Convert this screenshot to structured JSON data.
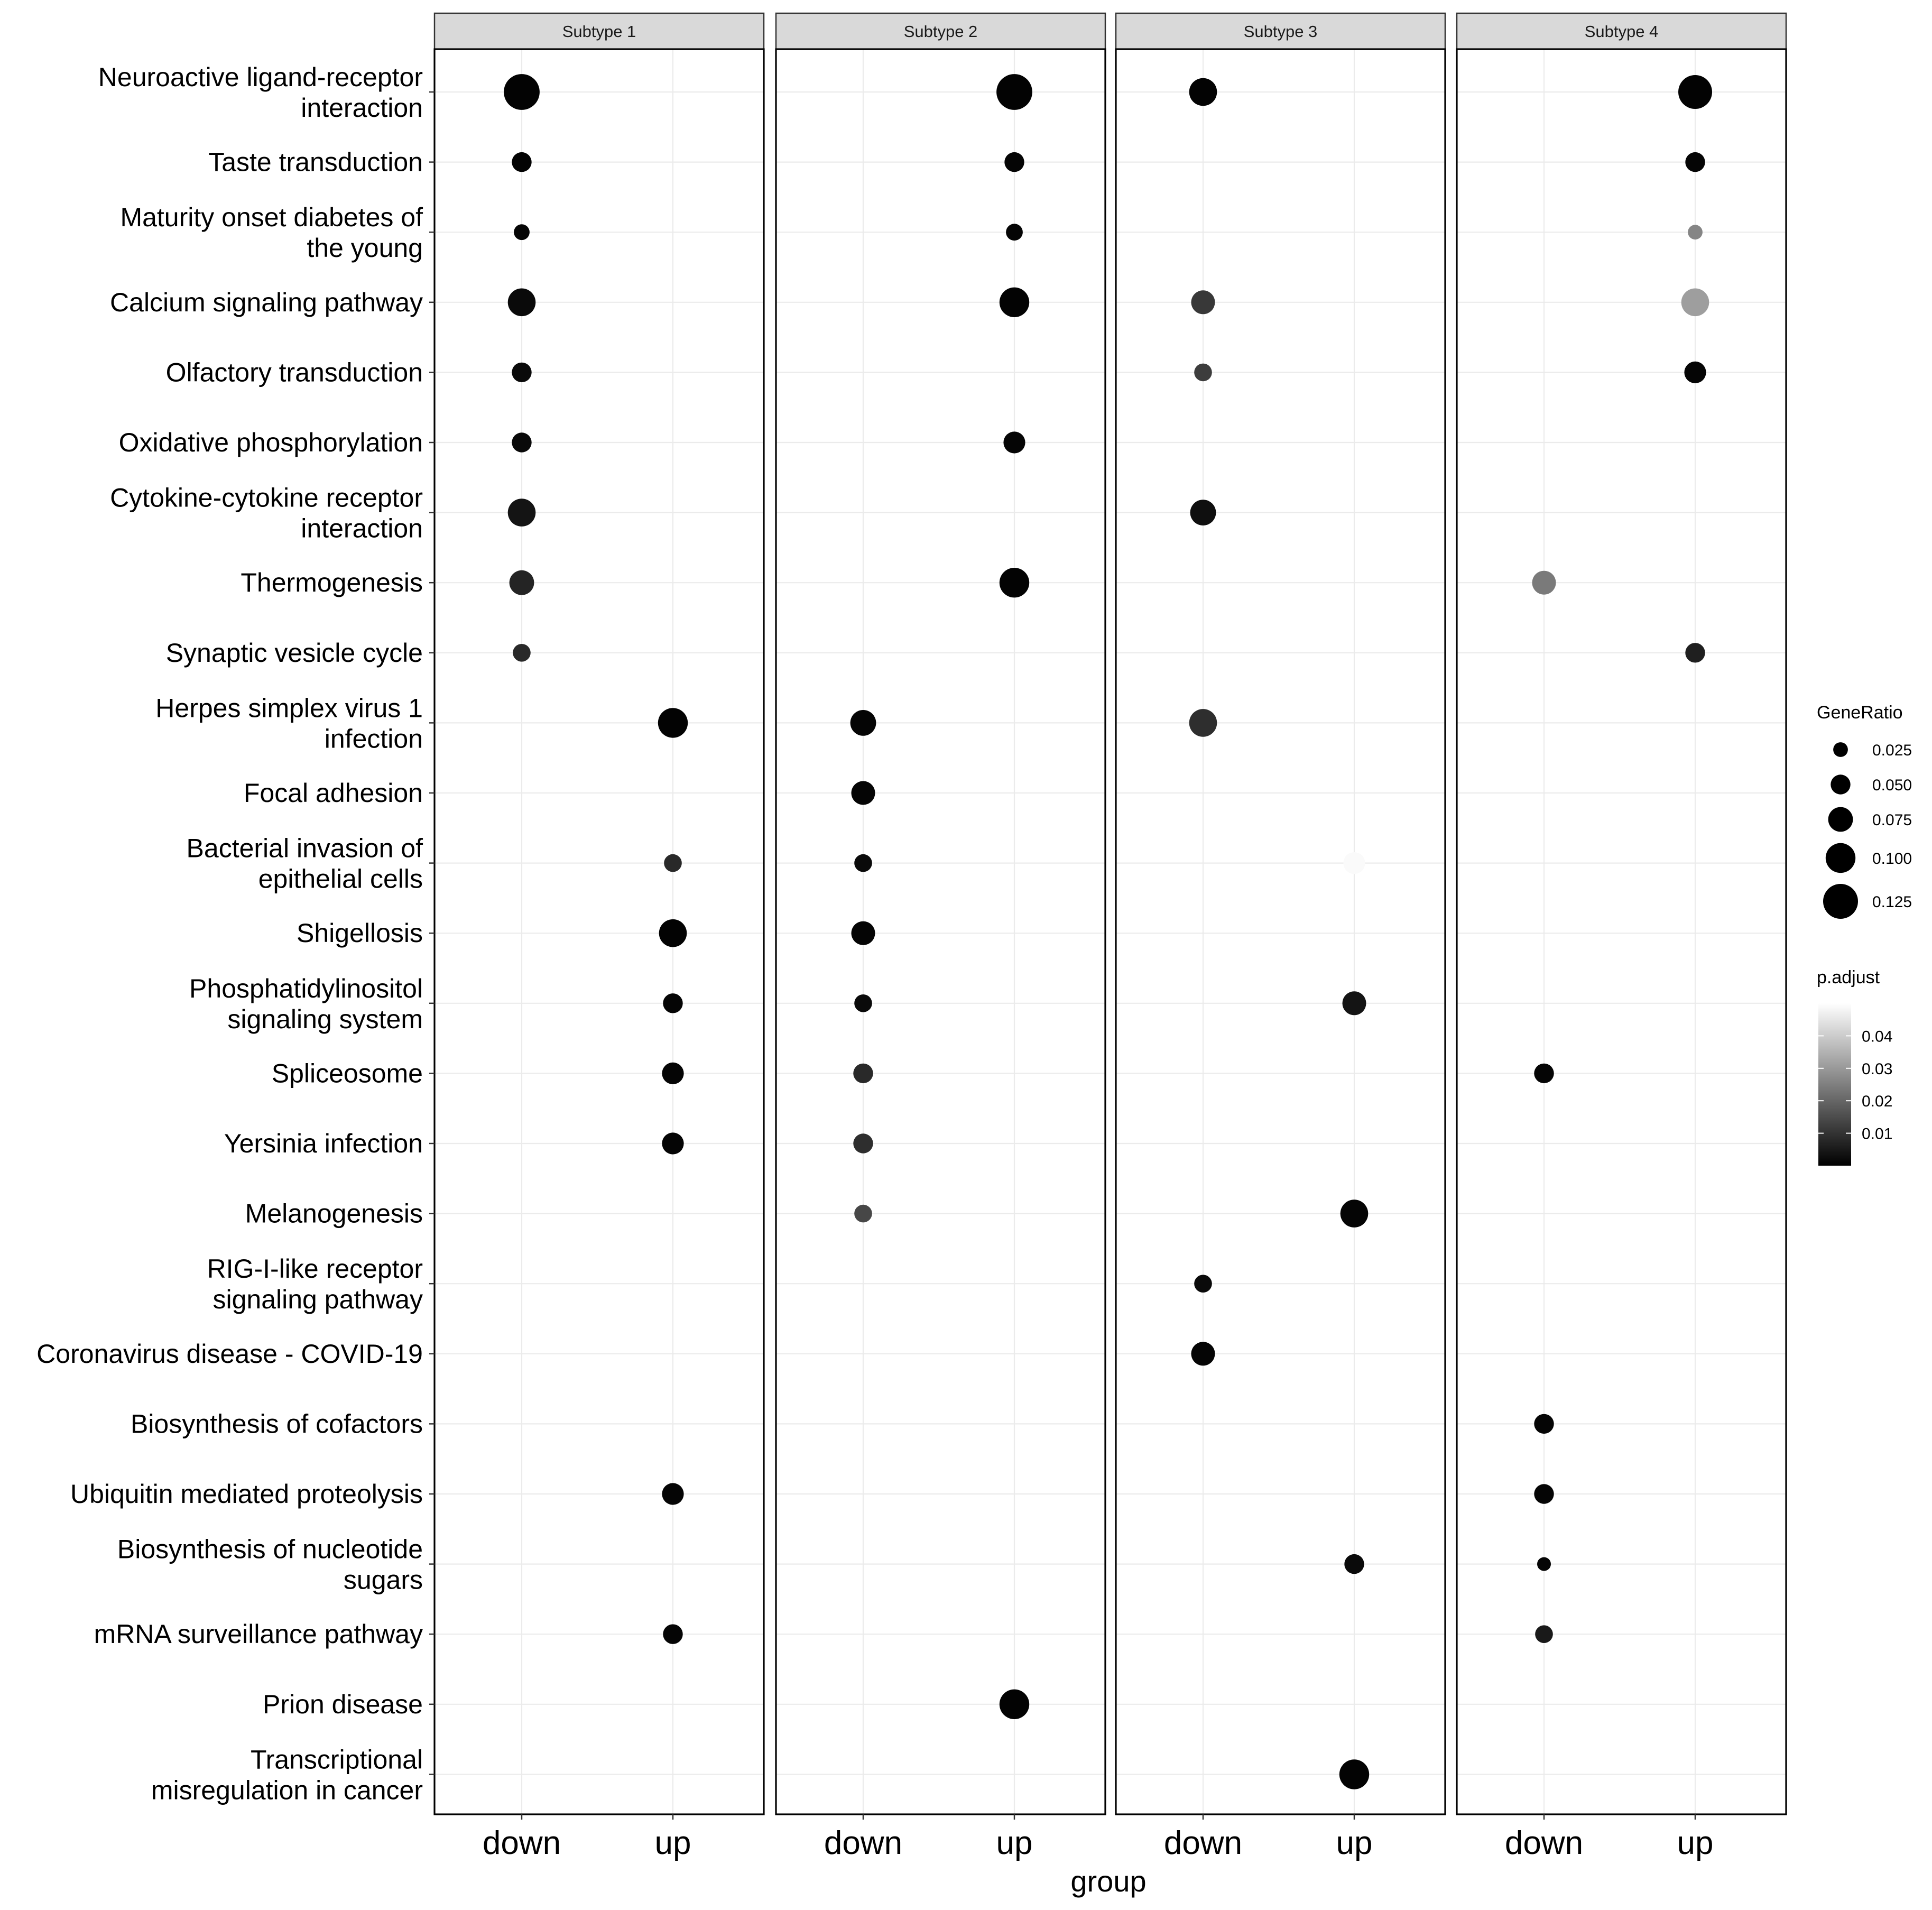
{
  "chart_data": {
    "type": "dot",
    "xlabel": "group",
    "facets": [
      "Subtype 1",
      "Subtype 2",
      "Subtype 3",
      "Subtype 4"
    ],
    "groups": [
      "down",
      "up"
    ],
    "pathways": [
      "Neuroactive ligand-receptor interaction",
      "Taste transduction",
      "Maturity onset diabetes of the young",
      "Calcium signaling pathway",
      "Olfactory transduction",
      "Oxidative phosphorylation",
      "Cytokine-cytokine receptor interaction",
      "Thermogenesis",
      "Synaptic vesicle cycle",
      "Herpes simplex virus 1 infection",
      "Focal adhesion",
      "Bacterial invasion of epithelial cells",
      "Shigellosis",
      "Phosphatidylinositol signaling system",
      "Spliceosome",
      "Yersinia infection",
      "Melanogenesis",
      "RIG-I-like receptor signaling pathway",
      "Coronavirus disease - COVID-19",
      "Biosynthesis of cofactors",
      "Ubiquitin mediated proteolysis",
      "Biosynthesis of nucleotide sugars",
      "mRNA surveillance pathway",
      "Prion disease",
      "Transcriptional misregulation in cancer"
    ],
    "pathway_label_lines": [
      [
        "Neuroactive ligand-receptor",
        "interaction"
      ],
      [
        "Taste transduction"
      ],
      [
        "Maturity onset diabetes of",
        "the young"
      ],
      [
        "Calcium signaling pathway"
      ],
      [
        "Olfactory transduction"
      ],
      [
        "Oxidative phosphorylation"
      ],
      [
        "Cytokine-cytokine receptor",
        "interaction"
      ],
      [
        "Thermogenesis"
      ],
      [
        "Synaptic vesicle cycle"
      ],
      [
        "Herpes simplex virus 1",
        "infection"
      ],
      [
        "Focal adhesion"
      ],
      [
        "Bacterial invasion of",
        "epithelial cells"
      ],
      [
        "Shigellosis"
      ],
      [
        "Phosphatidylinositol",
        "signaling system"
      ],
      [
        "Spliceosome"
      ],
      [
        "Yersinia infection"
      ],
      [
        "Melanogenesis"
      ],
      [
        "RIG-I-like receptor",
        "signaling pathway"
      ],
      [
        "Coronavirus disease - COVID-19"
      ],
      [
        "Biosynthesis of cofactors"
      ],
      [
        "Ubiquitin mediated proteolysis"
      ],
      [
        "Biosynthesis of nucleotide",
        "sugars"
      ],
      [
        "mRNA surveillance pathway"
      ],
      [
        "Prion disease"
      ],
      [
        "Transcriptional",
        "misregulation in cancer"
      ]
    ],
    "points": [
      {
        "facet": 0,
        "group": "down",
        "pathway": 0,
        "gene_ratio": 0.13,
        "p_adjust": 0.0005
      },
      {
        "facet": 0,
        "group": "down",
        "pathway": 1,
        "gene_ratio": 0.05,
        "p_adjust": 0.0005
      },
      {
        "facet": 0,
        "group": "down",
        "pathway": 2,
        "gene_ratio": 0.03,
        "p_adjust": 0.001
      },
      {
        "facet": 0,
        "group": "down",
        "pathway": 3,
        "gene_ratio": 0.09,
        "p_adjust": 0.002
      },
      {
        "facet": 0,
        "group": "down",
        "pathway": 4,
        "gene_ratio": 0.05,
        "p_adjust": 0.002
      },
      {
        "facet": 0,
        "group": "down",
        "pathway": 5,
        "gene_ratio": 0.05,
        "p_adjust": 0.002
      },
      {
        "facet": 0,
        "group": "down",
        "pathway": 6,
        "gene_ratio": 0.09,
        "p_adjust": 0.004
      },
      {
        "facet": 0,
        "group": "down",
        "pathway": 7,
        "gene_ratio": 0.075,
        "p_adjust": 0.007
      },
      {
        "facet": 0,
        "group": "down",
        "pathway": 8,
        "gene_ratio": 0.04,
        "p_adjust": 0.008
      },
      {
        "facet": 0,
        "group": "up",
        "pathway": 9,
        "gene_ratio": 0.1,
        "p_adjust": 0.0005
      },
      {
        "facet": 0,
        "group": "up",
        "pathway": 11,
        "gene_ratio": 0.04,
        "p_adjust": 0.008
      },
      {
        "facet": 0,
        "group": "up",
        "pathway": 12,
        "gene_ratio": 0.09,
        "p_adjust": 0.0005
      },
      {
        "facet": 0,
        "group": "up",
        "pathway": 13,
        "gene_ratio": 0.05,
        "p_adjust": 0.001
      },
      {
        "facet": 0,
        "group": "up",
        "pathway": 14,
        "gene_ratio": 0.06,
        "p_adjust": 0.001
      },
      {
        "facet": 0,
        "group": "up",
        "pathway": 15,
        "gene_ratio": 0.06,
        "p_adjust": 0.001
      },
      {
        "facet": 0,
        "group": "up",
        "pathway": 20,
        "gene_ratio": 0.06,
        "p_adjust": 0.001
      },
      {
        "facet": 0,
        "group": "up",
        "pathway": 22,
        "gene_ratio": 0.05,
        "p_adjust": 0.001
      },
      {
        "facet": 1,
        "group": "up",
        "pathway": 0,
        "gene_ratio": 0.13,
        "p_adjust": 0.0005
      },
      {
        "facet": 1,
        "group": "up",
        "pathway": 1,
        "gene_ratio": 0.05,
        "p_adjust": 0.001
      },
      {
        "facet": 1,
        "group": "up",
        "pathway": 2,
        "gene_ratio": 0.035,
        "p_adjust": 0.001
      },
      {
        "facet": 1,
        "group": "up",
        "pathway": 3,
        "gene_ratio": 0.1,
        "p_adjust": 0.0005
      },
      {
        "facet": 1,
        "group": "up",
        "pathway": 5,
        "gene_ratio": 0.06,
        "p_adjust": 0.001
      },
      {
        "facet": 1,
        "group": "up",
        "pathway": 7,
        "gene_ratio": 0.1,
        "p_adjust": 0.0005
      },
      {
        "facet": 1,
        "group": "down",
        "pathway": 9,
        "gene_ratio": 0.08,
        "p_adjust": 0.001
      },
      {
        "facet": 1,
        "group": "down",
        "pathway": 10,
        "gene_ratio": 0.07,
        "p_adjust": 0.001
      },
      {
        "facet": 1,
        "group": "down",
        "pathway": 11,
        "gene_ratio": 0.04,
        "p_adjust": 0.002
      },
      {
        "facet": 1,
        "group": "down",
        "pathway": 12,
        "gene_ratio": 0.07,
        "p_adjust": 0.001
      },
      {
        "facet": 1,
        "group": "down",
        "pathway": 13,
        "gene_ratio": 0.04,
        "p_adjust": 0.002
      },
      {
        "facet": 1,
        "group": "down",
        "pathway": 14,
        "gene_ratio": 0.05,
        "p_adjust": 0.008
      },
      {
        "facet": 1,
        "group": "down",
        "pathway": 15,
        "gene_ratio": 0.05,
        "p_adjust": 0.009
      },
      {
        "facet": 1,
        "group": "down",
        "pathway": 16,
        "gene_ratio": 0.04,
        "p_adjust": 0.014
      },
      {
        "facet": 1,
        "group": "up",
        "pathway": 23,
        "gene_ratio": 0.1,
        "p_adjust": 0.0005
      },
      {
        "facet": 2,
        "group": "down",
        "pathway": 0,
        "gene_ratio": 0.09,
        "p_adjust": 0.0005
      },
      {
        "facet": 2,
        "group": "down",
        "pathway": 3,
        "gene_ratio": 0.07,
        "p_adjust": 0.011
      },
      {
        "facet": 2,
        "group": "down",
        "pathway": 4,
        "gene_ratio": 0.04,
        "p_adjust": 0.012
      },
      {
        "facet": 2,
        "group": "down",
        "pathway": 6,
        "gene_ratio": 0.08,
        "p_adjust": 0.003
      },
      {
        "facet": 2,
        "group": "down",
        "pathway": 9,
        "gene_ratio": 0.09,
        "p_adjust": 0.009
      },
      {
        "facet": 2,
        "group": "up",
        "pathway": 11,
        "gene_ratio": 0.06,
        "p_adjust": 0.049
      },
      {
        "facet": 2,
        "group": "up",
        "pathway": 13,
        "gene_ratio": 0.07,
        "p_adjust": 0.004
      },
      {
        "facet": 2,
        "group": "up",
        "pathway": 16,
        "gene_ratio": 0.09,
        "p_adjust": 0.001
      },
      {
        "facet": 2,
        "group": "down",
        "pathway": 17,
        "gene_ratio": 0.04,
        "p_adjust": 0.002
      },
      {
        "facet": 2,
        "group": "down",
        "pathway": 18,
        "gene_ratio": 0.07,
        "p_adjust": 0.001
      },
      {
        "facet": 2,
        "group": "up",
        "pathway": 21,
        "gene_ratio": 0.05,
        "p_adjust": 0.002
      },
      {
        "facet": 2,
        "group": "up",
        "pathway": 24,
        "gene_ratio": 0.1,
        "p_adjust": 0.0005
      },
      {
        "facet": 3,
        "group": "up",
        "pathway": 0,
        "gene_ratio": 0.12,
        "p_adjust": 0.0005
      },
      {
        "facet": 3,
        "group": "up",
        "pathway": 1,
        "gene_ratio": 0.05,
        "p_adjust": 0.001
      },
      {
        "facet": 3,
        "group": "up",
        "pathway": 2,
        "gene_ratio": 0.025,
        "p_adjust": 0.026
      },
      {
        "facet": 3,
        "group": "up",
        "pathway": 3,
        "gene_ratio": 0.09,
        "p_adjust": 0.031
      },
      {
        "facet": 3,
        "group": "up",
        "pathway": 4,
        "gene_ratio": 0.06,
        "p_adjust": 0.001
      },
      {
        "facet": 3,
        "group": "down",
        "pathway": 7,
        "gene_ratio": 0.07,
        "p_adjust": 0.024
      },
      {
        "facet": 3,
        "group": "up",
        "pathway": 8,
        "gene_ratio": 0.05,
        "p_adjust": 0.006
      },
      {
        "facet": 3,
        "group": "down",
        "pathway": 14,
        "gene_ratio": 0.05,
        "p_adjust": 0.001
      },
      {
        "facet": 3,
        "group": "down",
        "pathway": 19,
        "gene_ratio": 0.05,
        "p_adjust": 0.001
      },
      {
        "facet": 3,
        "group": "down",
        "pathway": 20,
        "gene_ratio": 0.05,
        "p_adjust": 0.001
      },
      {
        "facet": 3,
        "group": "down",
        "pathway": 21,
        "gene_ratio": 0.02,
        "p_adjust": 0.001
      },
      {
        "facet": 3,
        "group": "down",
        "pathway": 22,
        "gene_ratio": 0.04,
        "p_adjust": 0.005
      }
    ],
    "legend": {
      "size_title": "GeneRatio",
      "size_values": [
        0.025,
        0.05,
        0.075,
        0.1,
        0.125
      ],
      "size_labels": [
        "0.025",
        "0.050",
        "0.075",
        "0.100",
        "0.125"
      ],
      "color_title": "p.adjust",
      "color_ticks": [
        0.01,
        0.02,
        0.03,
        0.04
      ],
      "color_labels": [
        "0.01",
        "0.02",
        "0.03",
        "0.04"
      ],
      "color_range": [
        0.0,
        0.05
      ],
      "color_low": "#000000",
      "color_high": "#ffffff"
    },
    "style": {
      "panel_border": "#000000",
      "grid_color": "#ebebeb",
      "strip_fill": "#d9d9d9",
      "text_color": "#1a1a1a"
    }
  }
}
